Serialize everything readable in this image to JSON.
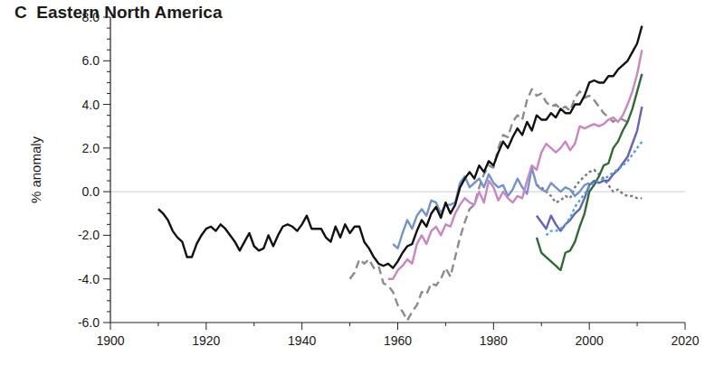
{
  "chart_data": {
    "type": "line",
    "title": "C  Eastern North America",
    "y_label": "% anomaly",
    "xlim": [
      1900,
      2020
    ],
    "xticks": [
      1900,
      1920,
      1940,
      1960,
      1980,
      2000,
      2020
    ],
    "ylim": [
      -6,
      8
    ],
    "yticks": [
      {
        "value": -6,
        "label": "-6.0"
      },
      {
        "value": -4,
        "label": "-4.0"
      },
      {
        "value": -2,
        "label": "-2.0"
      },
      {
        "value": 0,
        "label": "0.0"
      },
      {
        "value": 2,
        "label": "2.0"
      },
      {
        "value": 4,
        "label": "4.0"
      },
      {
        "value": 6,
        "label": "6.0"
      },
      {
        "value": 8,
        "label": "8.0"
      }
    ],
    "grid": false,
    "x": [
      1910,
      1911,
      1912,
      1913,
      1914,
      1915,
      1916,
      1917,
      1918,
      1919,
      1920,
      1921,
      1922,
      1923,
      1924,
      1925,
      1926,
      1927,
      1928,
      1929,
      1930,
      1931,
      1932,
      1933,
      1934,
      1935,
      1936,
      1937,
      1938,
      1939,
      1940,
      1941,
      1942,
      1943,
      1944,
      1945,
      1946,
      1947,
      1948,
      1949,
      1950,
      1951,
      1952,
      1953,
      1954,
      1955,
      1956,
      1957,
      1958,
      1959,
      1960,
      1961,
      1962,
      1963,
      1964,
      1965,
      1966,
      1967,
      1968,
      1969,
      1970,
      1971,
      1972,
      1973,
      1974,
      1975,
      1976,
      1977,
      1978,
      1979,
      1980,
      1981,
      1982,
      1983,
      1984,
      1985,
      1986,
      1987,
      1988,
      1989,
      1990,
      1991,
      1992,
      1993,
      1994,
      1995,
      1996,
      1997,
      1998,
      1999,
      2000,
      2001,
      2002,
      2003,
      2004,
      2005,
      2006,
      2007,
      2008,
      2009,
      2010,
      2011
    ],
    "series": [
      {
        "color": "#8c8c8c",
        "line_style": "dashed",
        "values": [
          null,
          null,
          null,
          null,
          null,
          null,
          null,
          null,
          null,
          null,
          null,
          null,
          null,
          null,
          null,
          null,
          null,
          null,
          null,
          null,
          null,
          null,
          null,
          null,
          null,
          null,
          null,
          null,
          null,
          null,
          null,
          null,
          null,
          null,
          null,
          null,
          null,
          null,
          null,
          null,
          -4.0,
          -3.7,
          -3.1,
          -3.3,
          -3.1,
          -3.5,
          -3.4,
          -4.2,
          -4.3,
          -4.6,
          -5.2,
          -5.5,
          -5.9,
          -5.5,
          -5.2,
          -4.6,
          -4.7,
          -4.2,
          -4.3,
          -4.0,
          -3.5,
          -3.9,
          -3.0,
          -2.1,
          -1.4,
          -0.8,
          -0.6,
          0.2,
          0.8,
          1.2,
          1.1,
          2.0,
          2.6,
          2.5,
          3.2,
          3.5,
          3.3,
          4.2,
          4.7,
          4.4,
          4.5,
          4.1,
          3.9,
          4.0,
          3.8,
          3.9,
          3.7,
          4.3,
          4.6,
          4.3,
          4.4,
          4.2,
          3.9,
          3.6,
          3.4,
          3.2,
          3.4,
          3.3,
          3.2,
          null,
          null,
          null
        ]
      },
      {
        "color": "#7a7a7a",
        "line_style": "dotted",
        "values": [
          null,
          null,
          null,
          null,
          null,
          null,
          null,
          null,
          null,
          null,
          null,
          null,
          null,
          null,
          null,
          null,
          null,
          null,
          null,
          null,
          null,
          null,
          null,
          null,
          null,
          null,
          null,
          null,
          null,
          null,
          null,
          null,
          null,
          null,
          null,
          null,
          null,
          null,
          null,
          null,
          null,
          null,
          null,
          null,
          null,
          null,
          null,
          null,
          null,
          null,
          null,
          null,
          null,
          null,
          null,
          null,
          null,
          null,
          null,
          null,
          null,
          null,
          null,
          null,
          null,
          null,
          null,
          null,
          null,
          null,
          null,
          null,
          null,
          null,
          null,
          null,
          null,
          null,
          null,
          0.3,
          0.2,
          0.0,
          -0.2,
          -0.5,
          -0.4,
          -0.2,
          -0.3,
          0.2,
          0.5,
          0.7,
          0.9,
          1.0,
          0.8,
          0.6,
          0.3,
          0.0,
          0.1,
          -0.1,
          -0.2,
          -0.2,
          -0.3,
          -0.3
        ]
      },
      {
        "color": "#7393c9",
        "line_style": "solid",
        "values": [
          null,
          null,
          null,
          null,
          null,
          null,
          null,
          null,
          null,
          null,
          null,
          null,
          null,
          null,
          null,
          null,
          null,
          null,
          null,
          null,
          null,
          null,
          null,
          null,
          null,
          null,
          null,
          null,
          null,
          null,
          null,
          null,
          null,
          null,
          null,
          null,
          null,
          null,
          null,
          null,
          null,
          null,
          null,
          null,
          null,
          null,
          null,
          null,
          null,
          -2.4,
          -2.6,
          -1.9,
          -1.3,
          -1.7,
          -1.1,
          -0.8,
          -1.1,
          -0.4,
          -0.5,
          -1.0,
          -0.6,
          -0.6,
          -0.5,
          0.4,
          0.7,
          0.2,
          0.4,
          0.6,
          0.2,
          0.8,
          0.4,
          0.2,
          0.3,
          -0.2,
          0.1,
          0.6,
          0.2,
          -0.1,
          1.1,
          0.3,
          0.1,
          0.0,
          0.4,
          0.2,
          0.0,
          0.2,
          0.1,
          -0.2,
          0.0,
          0.3,
          0.4,
          null,
          null,
          null,
          null,
          null,
          null,
          null,
          null,
          null,
          null,
          null
        ]
      },
      {
        "color": "#c985c4",
        "line_style": "solid",
        "values": [
          null,
          null,
          null,
          null,
          null,
          null,
          null,
          null,
          null,
          null,
          null,
          null,
          null,
          null,
          null,
          null,
          null,
          null,
          null,
          null,
          null,
          null,
          null,
          null,
          null,
          null,
          null,
          null,
          null,
          null,
          null,
          null,
          null,
          null,
          null,
          null,
          null,
          null,
          null,
          null,
          null,
          null,
          null,
          null,
          null,
          null,
          null,
          null,
          -4.0,
          -4.0,
          -3.6,
          -3.4,
          -3.1,
          -3.3,
          -2.4,
          -2.0,
          -2.4,
          -1.8,
          -1.6,
          -2.0,
          -1.5,
          -1.6,
          -1.0,
          -0.6,
          -0.3,
          -0.5,
          -0.6,
          0.0,
          -0.5,
          0.5,
          0.2,
          -0.4,
          0.0,
          -0.3,
          -0.5,
          -0.2,
          -0.3,
          0.5,
          1.2,
          1.0,
          1.8,
          2.2,
          2.0,
          1.8,
          2.0,
          2.3,
          1.9,
          2.2,
          3.0,
          2.9,
          3.0,
          3.1,
          3.0,
          3.1,
          3.3,
          3.4,
          3.2,
          3.5,
          4.0,
          4.6,
          5.4,
          6.5
        ]
      },
      {
        "color": "#6a5fbf",
        "line_style": "solid",
        "values": [
          null,
          null,
          null,
          null,
          null,
          null,
          null,
          null,
          null,
          null,
          null,
          null,
          null,
          null,
          null,
          null,
          null,
          null,
          null,
          null,
          null,
          null,
          null,
          null,
          null,
          null,
          null,
          null,
          null,
          null,
          null,
          null,
          null,
          null,
          null,
          null,
          null,
          null,
          null,
          null,
          null,
          null,
          null,
          null,
          null,
          null,
          null,
          null,
          null,
          null,
          null,
          null,
          null,
          null,
          null,
          null,
          null,
          null,
          null,
          null,
          null,
          null,
          null,
          null,
          null,
          null,
          null,
          null,
          null,
          null,
          null,
          null,
          null,
          null,
          null,
          null,
          null,
          null,
          null,
          -1.1,
          -1.4,
          -1.7,
          -1.1,
          -1.5,
          -1.8,
          -1.5,
          -1.3,
          -1.0,
          -0.8,
          -0.3,
          0.3,
          0.5,
          0.4,
          0.5,
          0.5,
          0.8,
          1.0,
          1.3,
          1.6,
          2.2,
          2.8,
          3.9
        ]
      },
      {
        "color": "#2f6b33",
        "line_style": "solid",
        "values": [
          null,
          null,
          null,
          null,
          null,
          null,
          null,
          null,
          null,
          null,
          null,
          null,
          null,
          null,
          null,
          null,
          null,
          null,
          null,
          null,
          null,
          null,
          null,
          null,
          null,
          null,
          null,
          null,
          null,
          null,
          null,
          null,
          null,
          null,
          null,
          null,
          null,
          null,
          null,
          null,
          null,
          null,
          null,
          null,
          null,
          null,
          null,
          null,
          null,
          null,
          null,
          null,
          null,
          null,
          null,
          null,
          null,
          null,
          null,
          null,
          null,
          null,
          null,
          null,
          null,
          null,
          null,
          null,
          null,
          null,
          null,
          null,
          null,
          null,
          null,
          null,
          null,
          null,
          null,
          -2.1,
          -2.8,
          -3.0,
          -3.2,
          -3.4,
          -3.6,
          -2.8,
          -2.7,
          -2.3,
          -1.6,
          -1.0,
          0.0,
          0.3,
          0.7,
          1.2,
          1.3,
          2.0,
          2.3,
          2.8,
          3.2,
          3.8,
          4.6,
          5.4
        ]
      },
      {
        "color": "#45aacb",
        "line_style": "dotted",
        "values": [
          null,
          null,
          null,
          null,
          null,
          null,
          null,
          null,
          null,
          null,
          null,
          null,
          null,
          null,
          null,
          null,
          null,
          null,
          null,
          null,
          null,
          null,
          null,
          null,
          null,
          null,
          null,
          null,
          null,
          null,
          null,
          null,
          null,
          null,
          null,
          null,
          null,
          null,
          null,
          null,
          null,
          null,
          null,
          null,
          null,
          null,
          null,
          null,
          null,
          null,
          null,
          null,
          null,
          null,
          null,
          null,
          null,
          null,
          null,
          null,
          null,
          null,
          null,
          null,
          null,
          null,
          null,
          null,
          null,
          null,
          null,
          null,
          null,
          null,
          null,
          null,
          null,
          null,
          null,
          null,
          null,
          -2.0,
          -1.8,
          -1.8,
          -1.7,
          -1.5,
          -1.2,
          -0.7,
          -0.4,
          -0.1,
          0.2,
          0.4,
          0.5,
          0.6,
          0.7,
          0.9,
          1.0,
          1.2,
          1.4,
          1.7,
          2.0,
          2.3
        ]
      },
      {
        "color": "#111111",
        "line_style": "solid",
        "values": [
          -0.8,
          -1.0,
          -1.3,
          -1.8,
          -2.1,
          -2.3,
          -3.0,
          -3.0,
          -2.4,
          -2.0,
          -1.7,
          -1.6,
          -1.8,
          -1.5,
          -1.7,
          -2.0,
          -2.3,
          -2.7,
          -2.3,
          -1.9,
          -2.5,
          -2.7,
          -2.6,
          -2.0,
          -2.5,
          -2.0,
          -1.6,
          -1.5,
          -1.6,
          -1.8,
          -1.5,
          -1.1,
          -1.7,
          -1.7,
          -1.7,
          -2.1,
          -2.3,
          -1.6,
          -2.1,
          -1.5,
          -1.9,
          -1.6,
          -1.6,
          -2.3,
          -2.6,
          -3.0,
          -3.3,
          -3.4,
          -3.3,
          -3.5,
          -3.2,
          -2.8,
          -2.5,
          -2.4,
          -1.8,
          -1.3,
          -1.6,
          -1.0,
          -0.7,
          -1.2,
          -0.5,
          -1.0,
          -0.6,
          0.2,
          0.6,
          0.9,
          0.6,
          1.2,
          0.9,
          1.4,
          1.2,
          1.8,
          2.3,
          2.0,
          2.5,
          2.9,
          2.6,
          3.2,
          2.8,
          3.5,
          3.3,
          3.3,
          3.6,
          3.4,
          3.8,
          3.6,
          3.6,
          4.0,
          4.0,
          4.4,
          5.0,
          5.1,
          5.0,
          5.0,
          5.3,
          5.3,
          5.6,
          5.8,
          6.0,
          6.4,
          6.8,
          7.6
        ]
      }
    ]
  }
}
